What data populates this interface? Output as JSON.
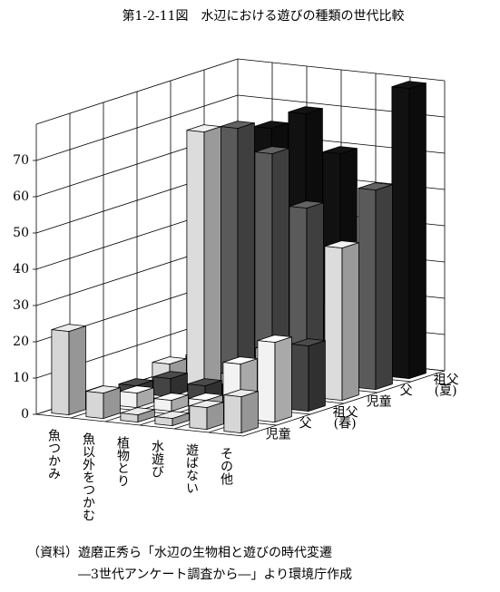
{
  "chart_data": {
    "type": "bar3d",
    "title": "第1-2-11図　水辺における遊びの種類の世代比較",
    "categories": [
      "魚つかみ",
      "魚以外をつかむ",
      "植物とり",
      "水遊び",
      "遊ばない",
      "その他"
    ],
    "groups": [
      {
        "label": "(春)",
        "series": [
          {
            "name": "児童",
            "color": "#d6d6d6",
            "values": [
              23,
              7,
              2,
              2,
              6,
              10
            ]
          },
          {
            "name": "父",
            "color": "#f2f2f2",
            "values": [
              3,
              4,
              3,
              4,
              15,
              22
            ]
          },
          {
            "name": "祖父",
            "color": "#444444",
            "values": [
              2,
              5,
              4,
              5,
              6,
              18
            ]
          }
        ]
      },
      {
        "label": "(夏)",
        "series": [
          {
            "name": "児童",
            "color": "#dcdcdc",
            "values": [
              5,
              70,
              4,
              12,
              8,
              42
            ]
          },
          {
            "name": "父",
            "color": "#5a5a5a",
            "values": [
              4,
              68,
              62,
              48,
              22,
              55
            ]
          },
          {
            "name": "祖父",
            "color": "#111111",
            "values": [
              3,
              65,
              70,
              60,
              10,
              80
            ]
          }
        ]
      }
    ],
    "ylim": [
      0,
      80
    ],
    "yticks": [
      0,
      10,
      20,
      30,
      40,
      50,
      60,
      70
    ],
    "grid": true
  },
  "source": {
    "label": "（資料）",
    "lines": [
      "遊磨正秀ら「水辺の生物相と遊びの時代変遷",
      "―3世代アンケート調査から―」より環境庁作成"
    ]
  }
}
